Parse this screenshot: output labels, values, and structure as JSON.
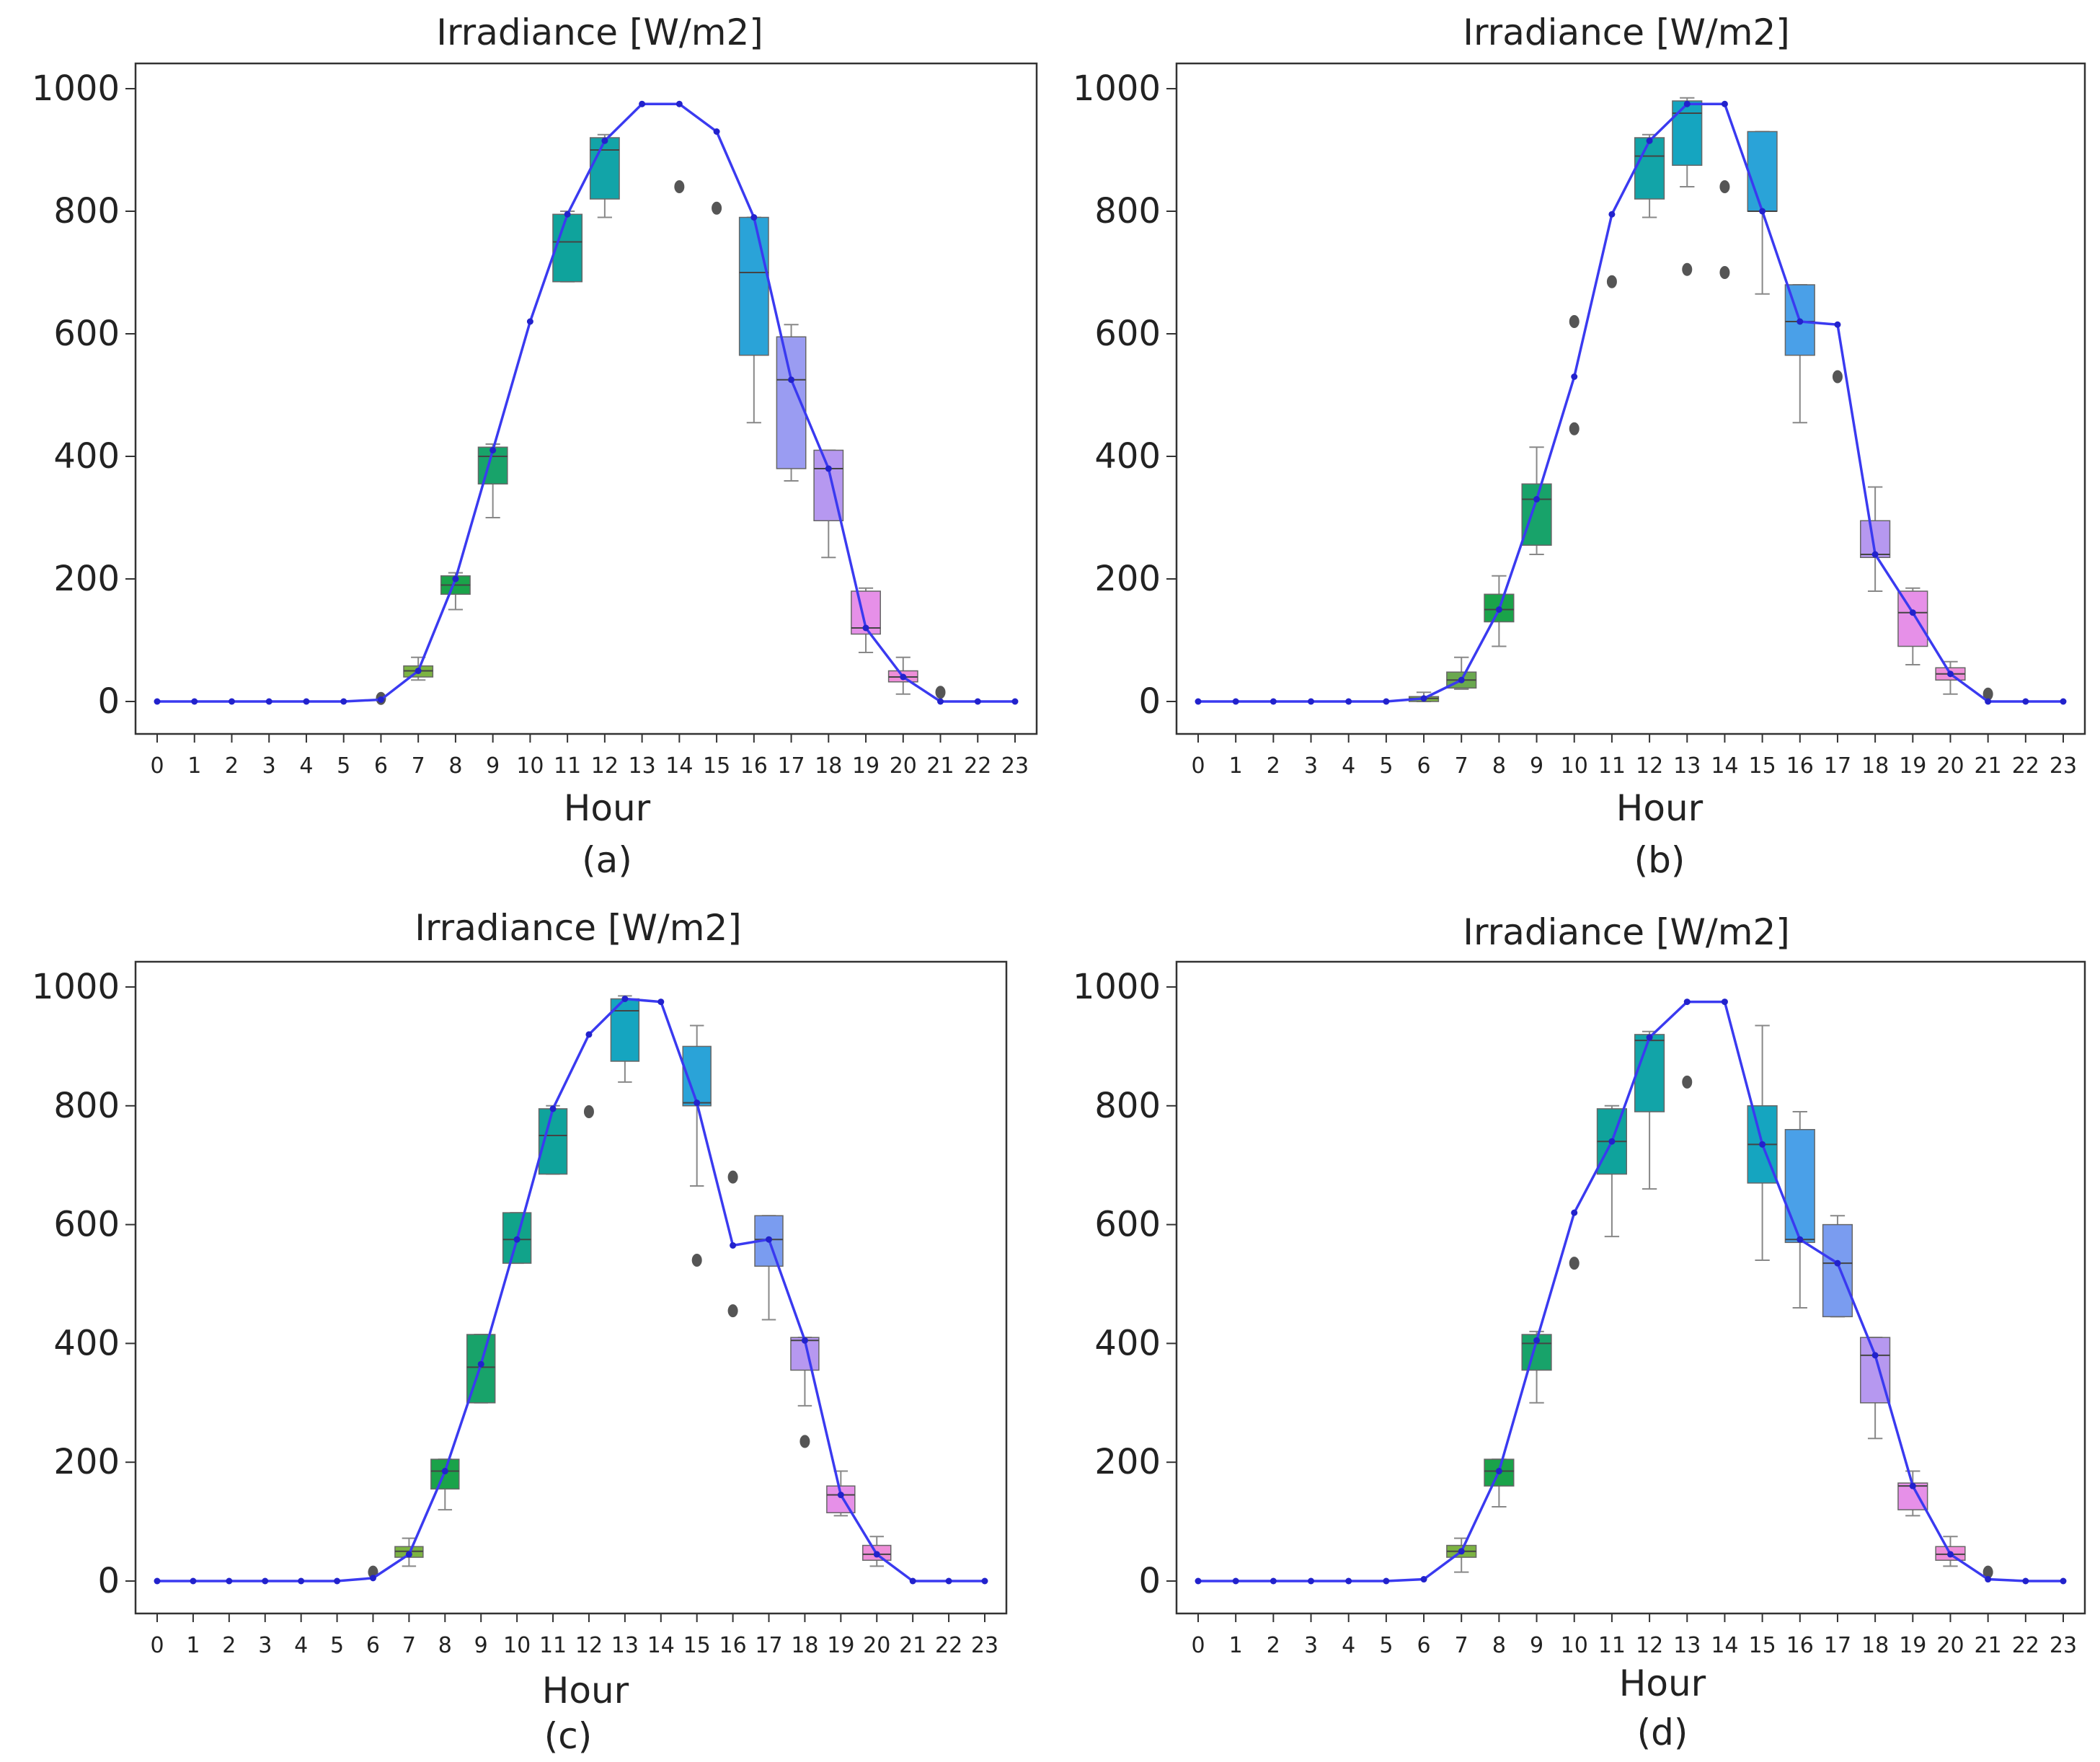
{
  "hours": [
    "0",
    "1",
    "2",
    "3",
    "4",
    "5",
    "6",
    "7",
    "8",
    "9",
    "10",
    "11",
    "12",
    "13",
    "14",
    "15",
    "16",
    "17",
    "18",
    "19",
    "20",
    "21",
    "22",
    "23"
  ],
  "y_ticks": [
    "0",
    "200",
    "400",
    "600",
    "800",
    "1000"
  ],
  "colors": {
    "line": "#3a3af0",
    "marker": "#2222cc",
    "whisker": "#888888",
    "outlier": "#555555",
    "axis": "#333333",
    "box_palette": [
      "#7cb342",
      "#6aa84f",
      "#1aa34a",
      "#18a36a",
      "#11a38a",
      "#0fa39c",
      "#12a4a8",
      "#15a5c0",
      "#2aa3d8",
      "#4aa0e8",
      "#7a9cf0",
      "#9a9cf2",
      "#b698f0",
      "#cf93ee",
      "#e690e8",
      "#ee8ed8"
    ]
  },
  "chart_data": [
    {
      "type": "box+line",
      "title": "Irradiance [W/m2]",
      "xlabel": "Hour",
      "ylabel": "",
      "caption": "(a)",
      "ylim": [
        -50,
        1000
      ],
      "line": [
        0,
        0,
        0,
        0,
        0,
        0,
        3,
        50,
        200,
        410,
        620,
        795,
        915,
        975,
        975,
        930,
        790,
        525,
        380,
        120,
        40,
        0,
        0,
        0
      ],
      "boxes": [
        {
          "hour": 7,
          "q1": 40,
          "q3": 58,
          "med": 50,
          "lo": 35,
          "hi": 72,
          "color": "#7cb342"
        },
        {
          "hour": 8,
          "q1": 175,
          "q3": 205,
          "med": 190,
          "lo": 150,
          "hi": 210,
          "color": "#1aa34a"
        },
        {
          "hour": 9,
          "q1": 355,
          "q3": 415,
          "med": 400,
          "lo": 300,
          "hi": 420,
          "color": "#18a36a"
        },
        {
          "hour": 11,
          "q1": 685,
          "q3": 795,
          "med": 750,
          "lo": 685,
          "hi": 800,
          "color": "#0fa39c"
        },
        {
          "hour": 12,
          "q1": 820,
          "q3": 920,
          "med": 900,
          "lo": 790,
          "hi": 925,
          "color": "#12a4a8"
        },
        {
          "hour": 16,
          "q1": 565,
          "q3": 790,
          "med": 700,
          "lo": 455,
          "hi": 790,
          "color": "#2aa3d8"
        },
        {
          "hour": 17,
          "q1": 380,
          "q3": 595,
          "med": 525,
          "lo": 360,
          "hi": 615,
          "color": "#9a9cf2"
        },
        {
          "hour": 18,
          "q1": 295,
          "q3": 410,
          "med": 380,
          "lo": 235,
          "hi": 410,
          "color": "#b698f0"
        },
        {
          "hour": 19,
          "q1": 110,
          "q3": 180,
          "med": 120,
          "lo": 80,
          "hi": 185,
          "color": "#e690e8"
        },
        {
          "hour": 20,
          "q1": 32,
          "q3": 50,
          "med": 40,
          "lo": 12,
          "hi": 72,
          "color": "#ee8ed8"
        }
      ],
      "outliers": [
        [
          6,
          5
        ],
        [
          14,
          840
        ],
        [
          15,
          805
        ],
        [
          21,
          15
        ]
      ]
    },
    {
      "type": "box+line",
      "title": "Irradiance [W/m2]",
      "xlabel": "Hour",
      "ylabel": "",
      "caption": "(b)",
      "ylim": [
        -50,
        1000
      ],
      "line": [
        0,
        0,
        0,
        0,
        0,
        0,
        5,
        35,
        150,
        330,
        530,
        795,
        915,
        975,
        975,
        800,
        620,
        615,
        240,
        145,
        45,
        0,
        0,
        0
      ],
      "boxes": [
        {
          "hour": 6,
          "q1": 0,
          "q3": 8,
          "med": 5,
          "lo": 0,
          "hi": 15,
          "color": "#7cb342"
        },
        {
          "hour": 7,
          "q1": 22,
          "q3": 48,
          "med": 35,
          "lo": 20,
          "hi": 72,
          "color": "#6aa84f"
        },
        {
          "hour": 8,
          "q1": 130,
          "q3": 175,
          "med": 150,
          "lo": 90,
          "hi": 205,
          "color": "#1aa34a"
        },
        {
          "hour": 9,
          "q1": 255,
          "q3": 355,
          "med": 330,
          "lo": 240,
          "hi": 415,
          "color": "#18a36a"
        },
        {
          "hour": 12,
          "q1": 820,
          "q3": 920,
          "med": 890,
          "lo": 790,
          "hi": 925,
          "color": "#12a4a8"
        },
        {
          "hour": 13,
          "q1": 875,
          "q3": 980,
          "med": 960,
          "lo": 840,
          "hi": 985,
          "color": "#15a5c0"
        },
        {
          "hour": 15,
          "q1": 800,
          "q3": 930,
          "med": 800,
          "lo": 665,
          "hi": 930,
          "color": "#2aa3d8"
        },
        {
          "hour": 16,
          "q1": 565,
          "q3": 680,
          "med": 620,
          "lo": 455,
          "hi": 680,
          "color": "#4aa0e8"
        },
        {
          "hour": 18,
          "q1": 235,
          "q3": 295,
          "med": 240,
          "lo": 180,
          "hi": 350,
          "color": "#b698f0"
        },
        {
          "hour": 19,
          "q1": 90,
          "q3": 180,
          "med": 145,
          "lo": 60,
          "hi": 185,
          "color": "#e690e8"
        },
        {
          "hour": 20,
          "q1": 35,
          "q3": 55,
          "med": 45,
          "lo": 12,
          "hi": 65,
          "color": "#ee8ed8"
        }
      ],
      "outliers": [
        [
          10,
          620
        ],
        [
          10,
          445
        ],
        [
          11,
          685
        ],
        [
          13,
          705
        ],
        [
          14,
          840
        ],
        [
          14,
          700
        ],
        [
          17,
          530
        ],
        [
          21,
          12
        ]
      ]
    },
    {
      "type": "box+line",
      "title": "Irradiance [W/m2]",
      "xlabel": "Hour",
      "ylabel": "",
      "caption": "(c)",
      "ylim": [
        -50,
        1000
      ],
      "line": [
        0,
        0,
        0,
        0,
        0,
        0,
        5,
        45,
        185,
        365,
        575,
        795,
        920,
        980,
        975,
        805,
        565,
        575,
        405,
        145,
        45,
        0,
        0,
        0
      ],
      "boxes": [
        {
          "hour": 7,
          "q1": 40,
          "q3": 58,
          "med": 50,
          "lo": 25,
          "hi": 72,
          "color": "#7cb342"
        },
        {
          "hour": 8,
          "q1": 155,
          "q3": 205,
          "med": 185,
          "lo": 120,
          "hi": 205,
          "color": "#1aa34a"
        },
        {
          "hour": 9,
          "q1": 300,
          "q3": 415,
          "med": 360,
          "lo": 300,
          "hi": 415,
          "color": "#18a36a"
        },
        {
          "hour": 10,
          "q1": 535,
          "q3": 620,
          "med": 575,
          "lo": 535,
          "hi": 620,
          "color": "#11a38a"
        },
        {
          "hour": 11,
          "q1": 685,
          "q3": 795,
          "med": 750,
          "lo": 685,
          "hi": 800,
          "color": "#0fa39c"
        },
        {
          "hour": 13,
          "q1": 875,
          "q3": 980,
          "med": 960,
          "lo": 840,
          "hi": 985,
          "color": "#15a5c0"
        },
        {
          "hour": 15,
          "q1": 800,
          "q3": 900,
          "med": 805,
          "lo": 665,
          "hi": 935,
          "color": "#2aa3d8"
        },
        {
          "hour": 17,
          "q1": 530,
          "q3": 615,
          "med": 575,
          "lo": 440,
          "hi": 615,
          "color": "#7a9cf0"
        },
        {
          "hour": 18,
          "q1": 355,
          "q3": 410,
          "med": 405,
          "lo": 295,
          "hi": 410,
          "color": "#b698f0"
        },
        {
          "hour": 19,
          "q1": 115,
          "q3": 160,
          "med": 145,
          "lo": 110,
          "hi": 185,
          "color": "#e690e8"
        },
        {
          "hour": 20,
          "q1": 35,
          "q3": 60,
          "med": 45,
          "lo": 25,
          "hi": 75,
          "color": "#ee8ed8"
        }
      ],
      "outliers": [
        [
          6,
          15
        ],
        [
          12,
          790
        ],
        [
          15,
          540
        ],
        [
          16,
          680
        ],
        [
          16,
          455
        ],
        [
          18,
          235
        ]
      ]
    },
    {
      "type": "box+line",
      "title": "Irradiance [W/m2]",
      "xlabel": "Hour",
      "ylabel": "",
      "caption": "(d)",
      "ylim": [
        -50,
        1000
      ],
      "line": [
        0,
        0,
        0,
        0,
        0,
        0,
        3,
        50,
        185,
        405,
        620,
        740,
        915,
        975,
        975,
        735,
        575,
        535,
        380,
        160,
        45,
        3,
        0,
        0
      ],
      "boxes": [
        {
          "hour": 7,
          "q1": 40,
          "q3": 60,
          "med": 50,
          "lo": 15,
          "hi": 72,
          "color": "#7cb342"
        },
        {
          "hour": 8,
          "q1": 160,
          "q3": 205,
          "med": 185,
          "lo": 125,
          "hi": 205,
          "color": "#1aa34a"
        },
        {
          "hour": 9,
          "q1": 355,
          "q3": 415,
          "med": 400,
          "lo": 300,
          "hi": 420,
          "color": "#18a36a"
        },
        {
          "hour": 11,
          "q1": 685,
          "q3": 795,
          "med": 740,
          "lo": 580,
          "hi": 800,
          "color": "#0fa39c"
        },
        {
          "hour": 12,
          "q1": 790,
          "q3": 920,
          "med": 910,
          "lo": 660,
          "hi": 925,
          "color": "#12a4a8"
        },
        {
          "hour": 15,
          "q1": 670,
          "q3": 800,
          "med": 735,
          "lo": 540,
          "hi": 935,
          "color": "#15a5c0"
        },
        {
          "hour": 16,
          "q1": 570,
          "q3": 760,
          "med": 575,
          "lo": 460,
          "hi": 790,
          "color": "#4aa0e8"
        },
        {
          "hour": 17,
          "q1": 445,
          "q3": 600,
          "med": 535,
          "lo": 445,
          "hi": 615,
          "color": "#7a9cf0"
        },
        {
          "hour": 18,
          "q1": 300,
          "q3": 410,
          "med": 380,
          "lo": 240,
          "hi": 410,
          "color": "#b698f0"
        },
        {
          "hour": 19,
          "q1": 120,
          "q3": 165,
          "med": 160,
          "lo": 110,
          "hi": 185,
          "color": "#e690e8"
        },
        {
          "hour": 20,
          "q1": 35,
          "q3": 58,
          "med": 45,
          "lo": 25,
          "hi": 75,
          "color": "#ee8ed8"
        }
      ],
      "outliers": [
        [
          10,
          535
        ],
        [
          13,
          840
        ],
        [
          21,
          15
        ]
      ]
    }
  ]
}
